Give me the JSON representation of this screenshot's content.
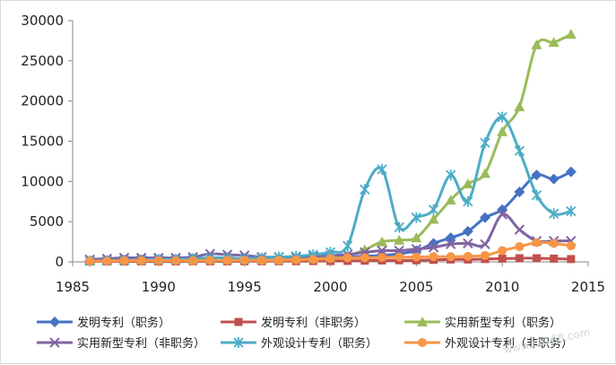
{
  "chart_data": {
    "type": "line",
    "title": "",
    "xlabel": "",
    "ylabel": "",
    "xlim": [
      1985,
      2015
    ],
    "ylim": [
      0,
      30000
    ],
    "xticks": [
      1985,
      1990,
      1995,
      2000,
      2005,
      2010,
      2015
    ],
    "yticks": [
      0,
      5000,
      10000,
      15000,
      20000,
      25000,
      30000
    ],
    "x": [
      1986,
      1987,
      1988,
      1989,
      1990,
      1991,
      1992,
      1993,
      1994,
      1995,
      1996,
      1997,
      1998,
      1999,
      2000,
      2001,
      2002,
      2003,
      2004,
      2005,
      2006,
      2007,
      2008,
      2009,
      2010,
      2011,
      2012,
      2013,
      2014
    ],
    "legend_position": "bottom",
    "series": [
      {
        "name": "发明专利（职务）",
        "color": "#4472c4",
        "marker": "diamond",
        "values": [
          100,
          150,
          200,
          200,
          200,
          250,
          250,
          300,
          300,
          300,
          300,
          350,
          400,
          450,
          500,
          600,
          700,
          800,
          1000,
          1400,
          2300,
          3000,
          3800,
          5500,
          6500,
          8700,
          10800,
          10300,
          11200
        ]
      },
      {
        "name": "发明专利（非职务）",
        "color": "#c0504d",
        "marker": "square",
        "values": [
          50,
          50,
          50,
          60,
          60,
          60,
          70,
          70,
          70,
          80,
          80,
          80,
          80,
          100,
          100,
          120,
          150,
          180,
          200,
          200,
          250,
          300,
          300,
          350,
          400,
          450,
          450,
          400,
          350
        ]
      },
      {
        "name": "实用新型专利（职务）",
        "color": "#9bbb59",
        "marker": "triangle",
        "values": [
          150,
          200,
          250,
          250,
          300,
          300,
          300,
          350,
          300,
          350,
          350,
          400,
          450,
          500,
          600,
          800,
          1500,
          2500,
          2700,
          3000,
          5300,
          7700,
          9700,
          11000,
          16200,
          19300,
          27000,
          27300,
          28300
        ]
      },
      {
        "name": "实用新型专利（非职务）",
        "color": "#8064a2",
        "marker": "x",
        "values": [
          300,
          400,
          500,
          500,
          500,
          500,
          600,
          1000,
          900,
          800,
          600,
          600,
          600,
          700,
          800,
          900,
          1200,
          1400,
          1400,
          1600,
          1800,
          2200,
          2300,
          2200,
          5900,
          4000,
          2600,
          2600,
          2600
        ]
      },
      {
        "name": "外观设计专利（职务）",
        "color": "#4bacc6",
        "marker": "star",
        "values": [
          100,
          150,
          200,
          250,
          300,
          300,
          400,
          500,
          500,
          400,
          500,
          600,
          700,
          900,
          1200,
          2000,
          9000,
          11500,
          4300,
          5500,
          6500,
          10800,
          7500,
          14800,
          18000,
          13800,
          8300,
          6000,
          6300
        ]
      },
      {
        "name": "外观设计专利（非职务）",
        "color": "#f79646",
        "marker": "circle",
        "values": [
          100,
          100,
          150,
          150,
          150,
          150,
          150,
          200,
          200,
          200,
          200,
          200,
          250,
          300,
          400,
          500,
          500,
          550,
          600,
          600,
          650,
          650,
          700,
          800,
          1400,
          1900,
          2400,
          2300,
          2000
        ]
      }
    ]
  },
  "watermark": "www.ca168.com"
}
